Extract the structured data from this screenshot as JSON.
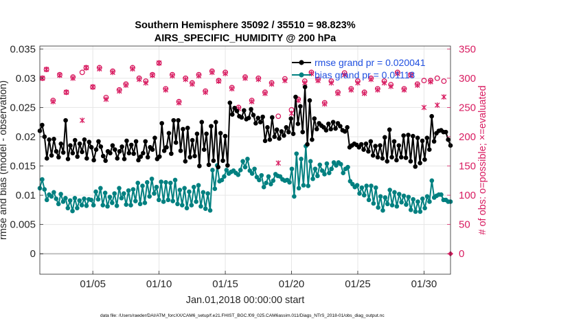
{
  "chart_data": {
    "type": "line",
    "title": "Southern Hemisphere 35092 / 35510 = 98.823%",
    "subtitle": "AIRS_SPECIFIC_HUMIDITY @ 200 hPa",
    "xlabel": "Jan.01,2018 00:00:00 start",
    "ylabel_left": "rmse and bias (model - observation)",
    "ylabel_right": "# of obs: o=possible; ×=evaluated",
    "footer": "data file: /Users/raeder/DAI/ATM_forcXX/CAM6_setup/f.e21.FHIST_BGC.f09_025.CAM6assim.011/Diags_NTrS_2018-01/obs_diag_output.nc",
    "x_ticks": [
      "01/05",
      "01/10",
      "01/15",
      "01/20",
      "01/25",
      "01/30"
    ],
    "x_tick_days": [
      5,
      10,
      15,
      20,
      25,
      30
    ],
    "xlim": [
      1,
      32
    ],
    "ylim_left": [
      -0.0035,
      0.0355
    ],
    "y_ticks_left": [
      "0",
      "0.005",
      "0.01",
      "0.015",
      "0.02",
      "0.025",
      "0.03",
      "0.035"
    ],
    "y_tick_values_left": [
      0,
      0.005,
      0.01,
      0.015,
      0.02,
      0.025,
      0.03,
      0.035
    ],
    "ylim_right": [
      -35,
      355
    ],
    "y_ticks_right": [
      "0",
      "50",
      "100",
      "150",
      "200",
      "250",
      "300",
      "350"
    ],
    "y_tick_values_right": [
      0,
      50,
      100,
      150,
      200,
      250,
      300,
      350
    ],
    "grid": true,
    "legend_position": "top-right",
    "colors": {
      "rmse": "#000000",
      "bias": "#008080",
      "obs": "#d81b60",
      "zero_line": "#c0c0c0",
      "legend_text": "#1f4fe0",
      "grid": "#e6e6e6"
    },
    "series": [
      {
        "name": "rmse",
        "legend": "rmse grand pr = 0.020041",
        "values": [
          0.021,
          0.022,
          0.02,
          0.0163,
          0.0195,
          0.0168,
          0.0196,
          0.0175,
          0.0165,
          0.0188,
          0.0173,
          0.0228,
          0.0162,
          0.0185,
          0.0172,
          0.0194,
          0.0166,
          0.0188,
          0.0174,
          0.0195,
          0.0163,
          0.0191,
          0.0182,
          0.016,
          0.0178,
          0.0192,
          0.0183,
          0.0167,
          0.0159,
          0.0175,
          0.0172,
          0.0185,
          0.0178,
          0.0163,
          0.0175,
          0.0183,
          0.0162,
          0.0193,
          0.0172,
          0.0186,
          0.0171,
          0.0192,
          0.016,
          0.0166,
          0.0172,
          0.0192,
          0.0165,
          0.0182,
          0.0178,
          0.0198,
          0.0162,
          0.0166,
          0.0223,
          0.0176,
          0.0182,
          0.0206,
          0.0171,
          0.0228,
          0.019,
          0.0228,
          0.0176,
          0.0213,
          0.0158,
          0.0215,
          0.0165,
          0.0194,
          0.0167,
          0.0205,
          0.015,
          0.0225,
          0.0178,
          0.0205,
          0.0152,
          0.0218,
          0.0159,
          0.0225,
          0.0148,
          0.0206,
          0.0159,
          0.0201,
          0.0151,
          0.0258,
          0.0238,
          0.0249,
          0.0244,
          0.0235,
          0.0233,
          0.0245,
          0.023,
          0.0232,
          0.0247,
          0.0237,
          0.0223,
          0.0232,
          0.0225,
          0.0234,
          0.0193,
          0.0216,
          0.0195,
          0.0233,
          0.02,
          0.0212,
          0.0197,
          0.0209,
          0.0202,
          0.0216,
          0.0208,
          0.0231,
          0.0205,
          0.0268,
          0.0222,
          0.0252,
          0.0208,
          0.0285,
          0.0187,
          0.0262,
          0.0195,
          0.0231,
          0.0213,
          0.0223,
          0.0219,
          0.0216,
          0.0211,
          0.0222,
          0.0213,
          0.0225,
          0.0214,
          0.0223,
          0.0218,
          0.0211,
          0.0209,
          0.0216,
          0.0182,
          0.0185,
          0.0188,
          0.0186,
          0.0182,
          0.0187,
          0.0178,
          0.0188,
          0.0175,
          0.0192,
          0.0168,
          0.0184,
          0.0165,
          0.0185,
          0.0163,
          0.0199,
          0.0158,
          0.0212,
          0.0165,
          0.0192,
          0.016,
          0.0185,
          0.0165,
          0.0202,
          0.0164,
          0.0203,
          0.0158,
          0.0201,
          0.0149,
          0.0198,
          0.0155,
          0.0193,
          0.0161,
          0.0198,
          0.0178,
          0.0235,
          0.0192,
          0.0206,
          0.021,
          0.0211,
          0.0208,
          0.0208,
          0.0195,
          0.0185
        ]
      },
      {
        "name": "bias",
        "legend": "bias grand pr = 0.01118",
        "values": [
          0.0112,
          0.0127,
          0.011,
          0.0092,
          0.0101,
          0.0098,
          0.0105,
          0.0094,
          0.0085,
          0.0102,
          0.0089,
          0.0095,
          0.0078,
          0.0091,
          0.0073,
          0.0095,
          0.0078,
          0.0091,
          0.0083,
          0.0094,
          0.0082,
          0.0093,
          0.0092,
          0.0083,
          0.0106,
          0.0093,
          0.0112,
          0.0083,
          0.0104,
          0.0081,
          0.0097,
          0.0087,
          0.0103,
          0.0082,
          0.0112,
          0.0095,
          0.0103,
          0.0084,
          0.0108,
          0.0083,
          0.011,
          0.009,
          0.0121,
          0.0085,
          0.0116,
          0.0087,
          0.0122,
          0.0098,
          0.0128,
          0.0103,
          0.0114,
          0.0092,
          0.0123,
          0.0089,
          0.0122,
          0.0092,
          0.0121,
          0.009,
          0.0126,
          0.0085,
          0.0109,
          0.0083,
          0.0112,
          0.0078,
          0.0106,
          0.0083,
          0.0114,
          0.0089,
          0.0117,
          0.0081,
          0.0105,
          0.0077,
          0.0103,
          0.0074,
          0.0143,
          0.0111,
          0.0151,
          0.0124,
          0.0126,
          0.0132,
          0.0143,
          0.0137,
          0.014,
          0.0142,
          0.0138,
          0.0135,
          0.0143,
          0.0158,
          0.0148,
          0.0162,
          0.0142,
          0.0137,
          0.0145,
          0.0131,
          0.0126,
          0.0134,
          0.0114,
          0.0121,
          0.0132,
          0.0119,
          0.0125,
          0.0136,
          0.0133,
          0.0132,
          0.0127,
          0.0125,
          0.0126,
          0.0122,
          0.0145,
          0.0098,
          0.0171,
          0.0112,
          0.0162,
          0.0117,
          0.0184,
          0.0116,
          0.0158,
          0.0128,
          0.0145,
          0.0133,
          0.0152,
          0.0142,
          0.0136,
          0.0154,
          0.0138,
          0.0145,
          0.0156,
          0.0151,
          0.0156,
          0.0153,
          0.0138,
          0.0145,
          0.0148,
          0.0124,
          0.0119,
          0.0114,
          0.0117,
          0.0103,
          0.0113,
          0.01,
          0.0116,
          0.0092,
          0.0116,
          0.0086,
          0.0113,
          0.0079,
          0.0098,
          0.0074,
          0.0096,
          0.0085,
          0.0109,
          0.0083,
          0.0105,
          0.0081,
          0.0102,
          0.0088,
          0.0099,
          0.0084,
          0.0097,
          0.0075,
          0.0093,
          0.0072,
          0.0089,
          0.0072,
          0.0094,
          0.0078,
          0.0098,
          0.0089,
          0.0125,
          0.0096,
          0.0099,
          0.0101,
          0.0101,
          0.0092,
          0.0092,
          0.0089,
          0.0089
        ]
      },
      {
        "name": "obs possible",
        "marker": "o",
        "x_days": [
          1.2,
          1.5,
          2.0,
          2.5,
          3.0,
          3.5,
          4.2,
          4.5,
          5.0,
          5.5,
          6.0,
          6.5,
          7.0,
          7.5,
          8.0,
          8.5,
          9.0,
          9.5,
          10.0,
          10.5,
          11.0,
          11.5,
          12.0,
          12.5,
          13.0,
          13.5,
          14.0,
          14.5,
          15.0,
          15.5,
          16.0,
          16.5,
          17.0,
          17.5,
          18.0,
          18.5,
          19.0,
          19.5,
          20.0,
          20.5,
          21.0,
          21.5,
          22.0,
          22.5,
          23.0,
          23.5,
          24.0,
          24.5,
          25.0,
          25.5,
          26.0,
          26.5,
          27.0,
          27.5,
          28.0,
          28.5,
          29.0,
          29.5,
          30.0,
          30.5,
          31.0,
          31.5
        ],
        "values": [
          300,
          315,
          262,
          306,
          276,
          302,
          310,
          318,
          285,
          318,
          267,
          312,
          280,
          290,
          318,
          300,
          295,
          306,
          326,
          282,
          306,
          260,
          300,
          292,
          306,
          278,
          312,
          296,
          310,
          284,
          250,
          302,
          262,
          300,
          276,
          292,
          235,
          299,
          246,
          264,
          295,
          310,
          298,
          258,
          295,
          276,
          309,
          282,
          295,
          276,
          300,
          282,
          295,
          289,
          310,
          282,
          306,
          290,
          296,
          296,
          300,
          295
        ]
      },
      {
        "name": "obs evaluated",
        "marker": "x",
        "x_days": [
          1.2,
          1.5,
          2.0,
          2.5,
          3.0,
          3.5,
          4.2,
          4.5,
          5.0,
          5.5,
          6.0,
          6.5,
          7.0,
          7.5,
          8.0,
          8.5,
          9.0,
          9.5,
          10.0,
          10.5,
          11.0,
          11.5,
          12.0,
          12.5,
          13.0,
          13.5,
          14.0,
          14.5,
          15.0,
          15.5,
          16.0,
          16.5,
          17.0,
          17.5,
          18.0,
          18.5,
          19.0,
          19.5,
          20.0,
          20.5,
          21.0,
          21.5,
          22.0,
          22.5,
          23.0,
          23.5,
          24.0,
          24.5,
          25.0,
          25.5,
          26.0,
          26.5,
          27.0,
          27.5,
          28.0,
          28.5,
          29.0,
          29.5,
          30.0,
          30.5,
          31.0,
          31.5
        ],
        "values": [
          300,
          315,
          260,
          305,
          276,
          300,
          228,
          318,
          285,
          316,
          264,
          310,
          278,
          288,
          316,
          298,
          292,
          305,
          326,
          280,
          304,
          258,
          298,
          290,
          304,
          276,
          310,
          295,
          308,
          282,
          248,
          300,
          260,
          298,
          274,
          290,
          155,
          296,
          240,
          262,
          292,
          308,
          296,
          256,
          292,
          274,
          306,
          280,
          292,
          274,
          298,
          280,
          292,
          286,
          308,
          280,
          305,
          288,
          250,
          294,
          254,
          268
        ]
      }
    ]
  }
}
